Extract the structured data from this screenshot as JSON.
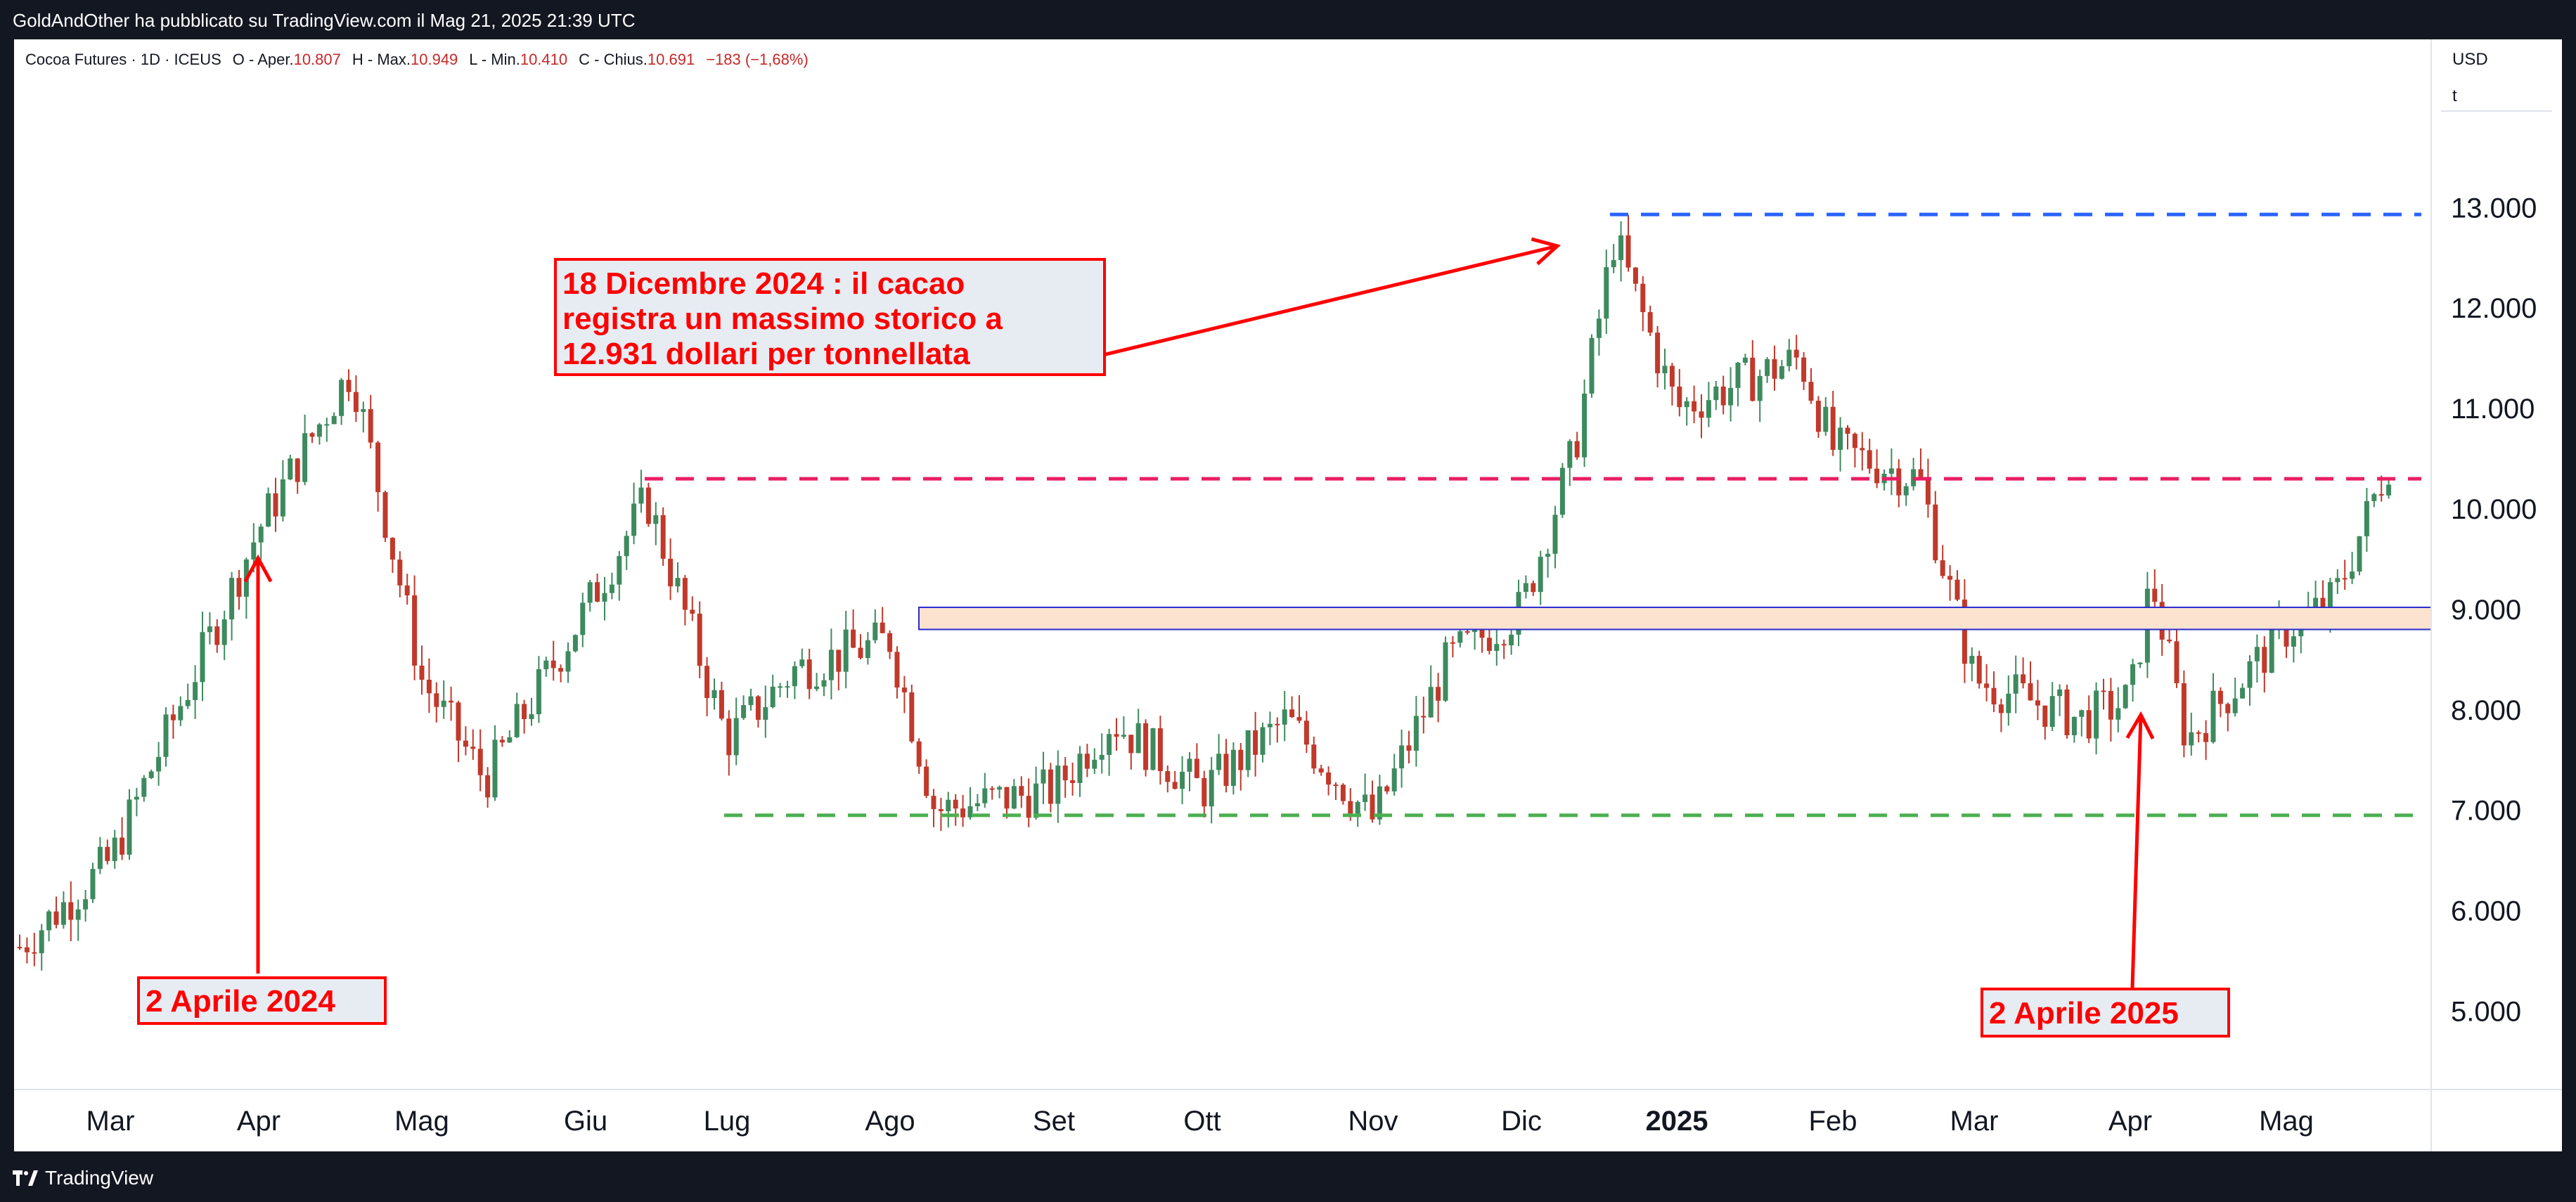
{
  "header": {
    "published_by": "GoldAndOther ha pubblicato su TradingView.com il Mag 21, 2025 21:39 UTC"
  },
  "legend": {
    "symbol": "Cocoa Futures · 1D · ICEUS",
    "open_label": "O - Aper.",
    "open_value": "10.807",
    "high_label": "H - Max.",
    "high_value": "10.949",
    "low_label": "L - Min.",
    "low_value": "10.410",
    "close_label": "C - Chius.",
    "close_value": "10.691",
    "change": "−183 (−1,68%)"
  },
  "price_scale": {
    "currency": "USD",
    "unit": "t"
  },
  "annotations": {
    "box1": [
      "18 Dicembre 2024 : il cacao",
      "registra un massimo storico a",
      "12.931 dollari per tonnellata"
    ],
    "box2": "2 Aprile 2024",
    "box3": "2 Aprile 2025"
  },
  "footer": {
    "brand": "TradingView"
  },
  "colors": {
    "up": "#3d8a5e",
    "down": "#c0392b",
    "annotation": "#ff0000",
    "box_fill": "#e7ecf3",
    "line_high": "#2962ff",
    "line_mid": "#e91e63",
    "line_low": "#4caf50",
    "zone_fill": "#fbe3cf",
    "zone_border": "#2a2ad0"
  },
  "chart_data": {
    "type": "candlestick",
    "y_ticks": [
      "13.000",
      "12.000",
      "11.000",
      "10.000",
      "9.000",
      "8.000",
      "7.000",
      "6.000",
      "5.000"
    ],
    "x_ticks": [
      "Mar",
      "Apr",
      "Mag",
      "Giu",
      "Lug",
      "Ago",
      "Set",
      "Ott",
      "Nov",
      "Dic",
      "2025",
      "Feb",
      "Mar",
      "Apr",
      "Mag"
    ],
    "x_ticks_bold": [
      "2025"
    ],
    "ylim": [
      4000,
      13700
    ],
    "levels": {
      "high": 12931,
      "resistance": 10300,
      "support": 6950
    },
    "zone": [
      8800,
      9020
    ],
    "anchors": [
      {
        "month": "Feb 24",
        "price": 5600
      },
      {
        "month": "Mar",
        "price": 6500
      },
      {
        "month": "Apr",
        "price": 9800
      },
      {
        "month": "Apr 19",
        "price": 11400
      },
      {
        "month": "Mag",
        "price": 8300
      },
      {
        "month": "Mag 15",
        "price": 7300
      },
      {
        "month": "Giu",
        "price": 9000
      },
      {
        "month": "Giu 12",
        "price": 10100
      },
      {
        "month": "Lug",
        "price": 7700
      },
      {
        "month": "Lug 15",
        "price": 8400
      },
      {
        "month": "Ago",
        "price": 8700
      },
      {
        "month": "Ago 10",
        "price": 7000
      },
      {
        "month": "Set",
        "price": 7200
      },
      {
        "month": "Set 15",
        "price": 7900
      },
      {
        "month": "Ott",
        "price": 7200
      },
      {
        "month": "Ott 20",
        "price": 7900
      },
      {
        "month": "Nov",
        "price": 6900
      },
      {
        "month": "Nov 20",
        "price": 8500
      },
      {
        "month": "Dic",
        "price": 9000
      },
      {
        "month": "Dic 10",
        "price": 10600
      },
      {
        "month": "Dic 18",
        "price": 12700
      },
      {
        "month": "2025",
        "price": 11000
      },
      {
        "month": "Gen 20",
        "price": 11500
      },
      {
        "month": "Feb",
        "price": 10600
      },
      {
        "month": "Feb 25",
        "price": 10300
      },
      {
        "month": "Mar",
        "price": 8300
      },
      {
        "month": "Mar 25",
        "price": 7900
      },
      {
        "month": "Apr",
        "price": 8100
      },
      {
        "month": "Apr 03",
        "price": 9300
      },
      {
        "month": "Apr 10",
        "price": 7700
      },
      {
        "month": "Mag",
        "price": 8800
      },
      {
        "month": "Mag 10",
        "price": 9100
      },
      {
        "month": "Mag 21",
        "price": 10691
      }
    ]
  }
}
